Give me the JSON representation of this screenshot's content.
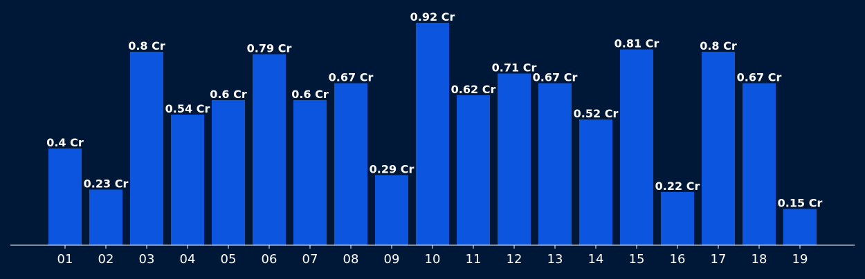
{
  "colors": {
    "background": "#001837",
    "bar": "#0c55de",
    "axis": "#ffffff",
    "text": "#ffffff"
  },
  "chart_data": {
    "type": "bar",
    "title": "",
    "xlabel": "",
    "ylabel": "",
    "ylim": [
      0,
      1.0
    ],
    "grid": false,
    "legend": "none",
    "value_suffix": " Cr",
    "categories": [
      "01",
      "02",
      "03",
      "04",
      "05",
      "06",
      "07",
      "08",
      "09",
      "10",
      "11",
      "12",
      "13",
      "14",
      "15",
      "16",
      "17",
      "18",
      "19"
    ],
    "values": [
      0.4,
      0.23,
      0.8,
      0.54,
      0.6,
      0.79,
      0.6,
      0.67,
      0.29,
      0.92,
      0.62,
      0.71,
      0.67,
      0.52,
      0.81,
      0.22,
      0.8,
      0.67,
      0.15
    ],
    "labels": [
      "0.4 Cr",
      "0.23 Cr",
      "0.8 Cr",
      "0.54 Cr",
      "0.6 Cr",
      "0.79 Cr",
      "0.6 Cr",
      "0.67 Cr",
      "0.29 Cr",
      "0.92 Cr",
      "0.62 Cr",
      "0.71 Cr",
      "0.67 Cr",
      "0.52 Cr",
      "0.81 Cr",
      "0.22 Cr",
      "0.8 Cr",
      "0.67 Cr",
      "0.15 Cr"
    ]
  }
}
